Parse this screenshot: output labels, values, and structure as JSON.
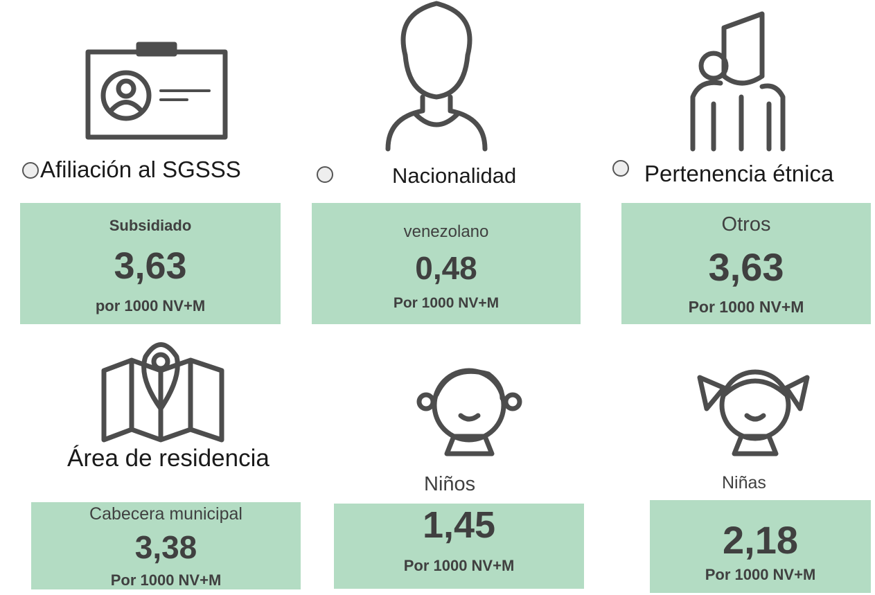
{
  "panels": [
    {
      "heading": "Afiliación al SGSSS",
      "category": "Subsidiado",
      "value": "3,63",
      "unit": "por 1000 NV+M"
    },
    {
      "heading": "Nacionalidad",
      "category": "venezolano",
      "value": "0,48",
      "unit": "Por 1000 NV+M"
    },
    {
      "heading": "Pertenencia étnica",
      "category": "Otros",
      "value": "3,63",
      "unit": "Por 1000 NV+M"
    },
    {
      "heading": "Área de residencia",
      "category": "Cabecera municipal",
      "value": "3,38",
      "unit": "Por 1000 NV+M"
    },
    {
      "heading": "Niños",
      "value": "1,45",
      "unit": "Por 1000 NV+M"
    },
    {
      "heading": "Niñas",
      "value": "2,18",
      "unit": "Por 1000 NV+M"
    }
  ]
}
